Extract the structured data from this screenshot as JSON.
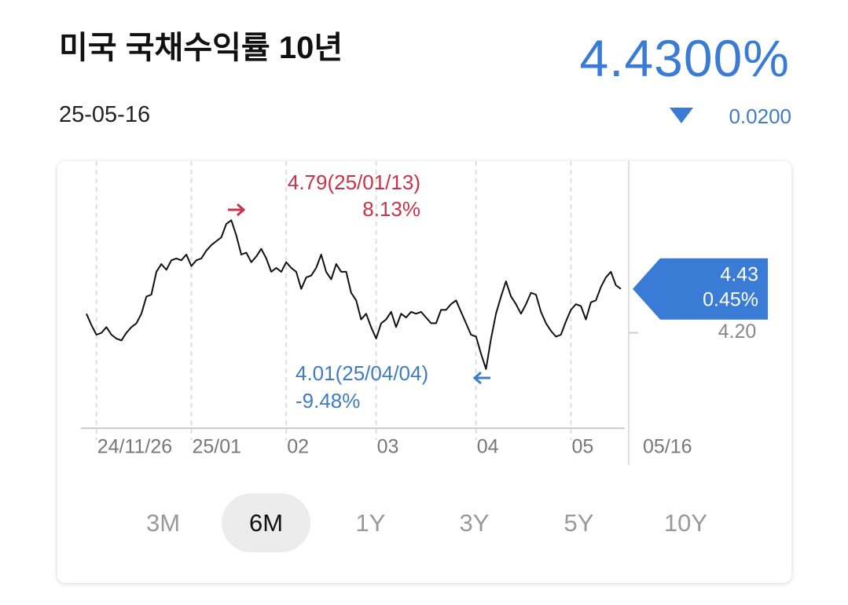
{
  "header": {
    "title": "미국 국채수익률 10년",
    "date": "25-05-16",
    "price": "4.4300%",
    "change": "0.0200"
  },
  "chart_data": {
    "type": "line",
    "color": "#111111",
    "values": [
      4.3,
      4.24,
      4.19,
      4.2,
      4.23,
      4.19,
      4.17,
      4.16,
      4.2,
      4.23,
      4.25,
      4.3,
      4.39,
      4.4,
      4.52,
      4.56,
      4.53,
      4.58,
      4.59,
      4.58,
      4.61,
      4.55,
      4.58,
      4.59,
      4.63,
      4.66,
      4.68,
      4.7,
      4.77,
      4.79,
      4.71,
      4.61,
      4.62,
      4.57,
      4.6,
      4.64,
      4.59,
      4.52,
      4.54,
      4.52,
      4.57,
      4.54,
      4.52,
      4.43,
      4.49,
      4.5,
      4.54,
      4.61,
      4.52,
      4.48,
      4.56,
      4.52,
      4.52,
      4.41,
      4.37,
      4.27,
      4.3,
      4.23,
      4.17,
      4.25,
      4.27,
      4.31,
      4.23,
      4.3,
      4.28,
      4.31,
      4.3,
      4.31,
      4.28,
      4.25,
      4.25,
      4.32,
      4.32,
      4.35,
      4.37,
      4.31,
      4.25,
      4.19,
      4.18,
      4.09,
      4.01,
      4.17,
      4.3,
      4.39,
      4.47,
      4.39,
      4.35,
      4.3,
      4.35,
      4.41,
      4.4,
      4.31,
      4.25,
      4.21,
      4.18,
      4.19,
      4.26,
      4.32,
      4.35,
      4.34,
      4.27,
      4.36,
      4.37,
      4.44,
      4.49,
      4.52,
      4.45,
      4.43
    ],
    "xlim": [
      0,
      107
    ],
    "xticks": [
      {
        "value": 2,
        "label": "24/11/26"
      },
      {
        "value": 21,
        "label": "25/01"
      },
      {
        "value": 40,
        "label": "02"
      },
      {
        "value": 58,
        "label": "03"
      },
      {
        "value": 78,
        "label": "04"
      },
      {
        "value": 97,
        "label": "05"
      },
      {
        "value": 107,
        "label": "05/16"
      }
    ],
    "ylim": [
      3.7,
      5.1
    ],
    "yticks": [
      {
        "value": 4.2,
        "label": "4.20"
      }
    ],
    "end_change": "0.45%",
    "end_color": "#3a7bd5",
    "annotations": [
      {
        "text": "4.79(25/01/13)",
        "change": "8.13%",
        "color": "#c8334a"
      },
      {
        "text": "4.01(25/04/04)",
        "change": "-9.48%",
        "color": "#3f7cc4"
      }
    ]
  },
  "tabs": [
    "3M",
    "6M",
    "1Y",
    "3Y",
    "5Y",
    "10Y"
  ],
  "selected_tab": 1
}
